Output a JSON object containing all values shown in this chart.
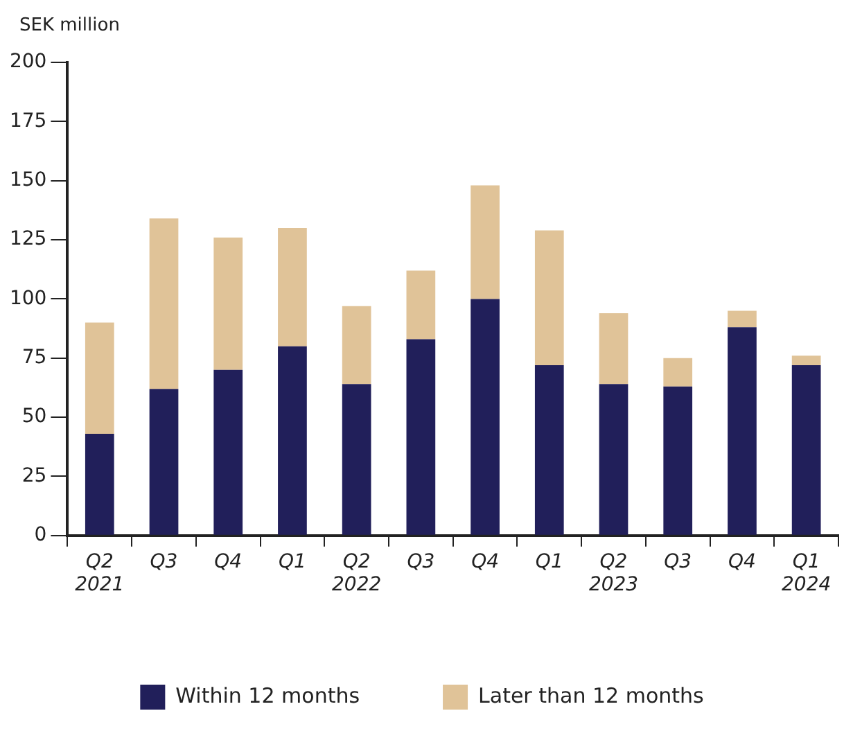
{
  "chart_data": {
    "type": "bar",
    "stacked": true,
    "ylabel": "SEK million",
    "categories": [
      "Q2\n2021",
      "Q3",
      "Q4",
      "Q1",
      "Q2\n2022",
      "Q3",
      "Q4",
      "Q1",
      "Q2\n2023",
      "Q3",
      "Q4",
      "Q1\n2024"
    ],
    "series": [
      {
        "name": "Within 12 months",
        "color": "#211f5a",
        "values": [
          43,
          62,
          70,
          80,
          64,
          83,
          100,
          72,
          64,
          63,
          88,
          72
        ]
      },
      {
        "name": "Later than 12 months",
        "color": "#e0c398",
        "values": [
          47,
          72,
          56,
          50,
          33,
          29,
          48,
          57,
          30,
          12,
          7,
          4
        ]
      }
    ],
    "ylim": [
      0,
      200
    ],
    "yticks": [
      0,
      25,
      50,
      75,
      100,
      125,
      150,
      175,
      200
    ],
    "grid": false,
    "legend": "bottom"
  }
}
